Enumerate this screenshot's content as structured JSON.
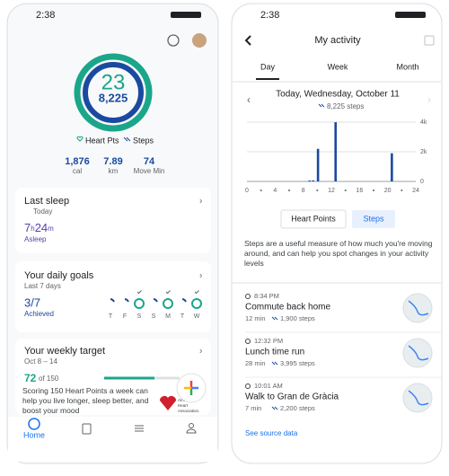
{
  "left": {
    "status_time": "2:38",
    "heart_pts": 23,
    "steps_total": "8,225",
    "heart_label": "Heart Pts",
    "steps_label": "Steps",
    "stats": [
      {
        "value": "1,876",
        "label": "cal"
      },
      {
        "value": 7.89,
        "label": "km"
      },
      {
        "value": 74,
        "label": "Move Min"
      }
    ],
    "sleep": {
      "title": "Last sleep",
      "date": "Today",
      "hours": 7,
      "h": "h",
      "minutes": 24,
      "m": "m",
      "status": "Asleep"
    },
    "goals": {
      "title": "Your daily goals",
      "period": "Last 7 days",
      "value": "3/7",
      "status": "Achieved",
      "days": [
        "T",
        "F",
        "S",
        "S",
        "M",
        "T",
        "W"
      ]
    },
    "weekly": {
      "title": "Your weekly target",
      "dates": "Oct 8 – 14",
      "value": 72,
      "of": "of 150",
      "text": "Scoring 150 Heart Points a week can help you live longer, sleep better, and boost your mood",
      "logo": "American Heart Association."
    },
    "nav_home": "Home"
  },
  "right": {
    "status_time": "2:38",
    "title": "My activity",
    "tabs": [
      "Day",
      "Week",
      "Month"
    ],
    "date": "Today, Wednesday, October 11",
    "steps": "8,225 steps",
    "chart": {
      "type": "bar",
      "x": [
        8.9,
        9.4,
        10.1,
        12.6,
        20.6
      ],
      "values": [
        60,
        70,
        2200,
        3995,
        1900
      ],
      "color": "#1a4aa0",
      "xlim": [
        0,
        24
      ],
      "xticks": [
        0,
        4,
        8,
        12,
        16,
        20,
        24
      ],
      "ylim": [
        0,
        4000
      ],
      "yticks": [
        0,
        {
          "value": 2000,
          "label": "2k"
        },
        {
          "value": 4000,
          "label": "4k"
        }
      ],
      "grid": true
    },
    "toggles": [
      "Heart Points",
      "Steps"
    ],
    "description": "Steps are a useful measure of how much you're moving around, and can help you spot changes in your activity levels",
    "activities": [
      {
        "time": "8:34 PM",
        "name": "Commute back home",
        "duration": "12 min",
        "steps": "1,900 steps"
      },
      {
        "time": "12:32 PM",
        "name": "Lunch time run",
        "duration": "28 min",
        "steps": "3,995 steps"
      },
      {
        "time": "10:01 AM",
        "name": "Walk to Gran de Gràcia",
        "duration": "7 min",
        "steps": "2,200 steps"
      }
    ],
    "source_link": "See source data"
  }
}
